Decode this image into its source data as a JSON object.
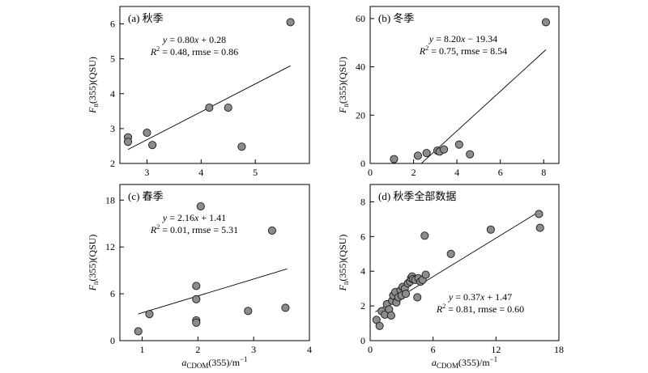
{
  "chart_data": [
    {
      "type": "scatter",
      "title": "(a) 秋季",
      "xlim": [
        2.5,
        6.0
      ],
      "ylim": [
        2,
        6.5
      ],
      "xticks": [
        3,
        4,
        5
      ],
      "yticks": [
        2,
        3,
        4,
        5,
        6
      ],
      "ylabel": {
        "main": "F",
        "sub": "n",
        "rest": "(355)(QSU)"
      },
      "xlabel": null,
      "points": [
        [
          2.65,
          2.75
        ],
        [
          2.65,
          2.62
        ],
        [
          3.0,
          2.88
        ],
        [
          3.1,
          2.53
        ],
        [
          4.15,
          3.6
        ],
        [
          4.5,
          3.6
        ],
        [
          4.75,
          2.48
        ],
        [
          5.65,
          6.05
        ]
      ],
      "fit": {
        "slope": 0.8,
        "intercept": 0.28,
        "x_range": [
          2.65,
          5.65
        ]
      },
      "equation": [
        "y = 0.80x + 0.28",
        "R2 = 0.48, rmse = 0.86"
      ],
      "equation_pos": "top-left"
    },
    {
      "type": "scatter",
      "title": "(b) 冬季",
      "xlim": [
        0,
        8.7
      ],
      "ylim": [
        0,
        65
      ],
      "xticks": [
        0,
        2,
        4,
        6,
        8
      ],
      "yticks": [
        0,
        20,
        40,
        60
      ],
      "ylabel": {
        "main": "F",
        "sub": "n",
        "rest": "(355)(QSU)"
      },
      "xlabel": null,
      "points": [
        [
          1.1,
          1.8
        ],
        [
          2.2,
          3.2
        ],
        [
          2.6,
          4.3
        ],
        [
          3.1,
          5.3
        ],
        [
          3.2,
          4.9
        ],
        [
          3.4,
          5.8
        ],
        [
          4.1,
          7.8
        ],
        [
          4.6,
          3.8
        ],
        [
          8.1,
          58.5
        ]
      ],
      "fit": {
        "slope": 8.2,
        "intercept": -19.34,
        "x_range": [
          2.36,
          8.1
        ]
      },
      "equation": [
        "y = 8.20x − 19.34",
        "R2 = 0.75, rmse = 8.54"
      ],
      "equation_pos": "top-right"
    },
    {
      "type": "scatter",
      "title": "(c) 春季",
      "xlim": [
        0.6,
        4.0
      ],
      "ylim": [
        0,
        20
      ],
      "xticks": [
        1,
        2,
        3,
        4
      ],
      "yticks": [
        0,
        6,
        12,
        18
      ],
      "ylabel": {
        "main": "F",
        "sub": "n",
        "rest": "(355)(QSU)"
      },
      "xlabel": {
        "main": "a",
        "sub": "CDOM",
        "rest": "(355)/m",
        "sup": "−1"
      },
      "points": [
        [
          0.93,
          1.2
        ],
        [
          1.13,
          3.4
        ],
        [
          1.97,
          7.0
        ],
        [
          1.97,
          5.3
        ],
        [
          1.97,
          2.6
        ],
        [
          1.97,
          2.3
        ],
        [
          2.05,
          17.2
        ],
        [
          2.9,
          3.8
        ],
        [
          3.33,
          14.1
        ],
        [
          3.57,
          4.2
        ]
      ],
      "fit": {
        "slope": 2.16,
        "intercept": 1.41,
        "x_range": [
          0.93,
          3.6
        ]
      },
      "equation": [
        "y = 2.16x + 1.41",
        "R2 = 0.01, rmse = 5.31"
      ],
      "equation_pos": "top-left"
    },
    {
      "type": "scatter",
      "title": "(d) 秋季全部数据",
      "xlim": [
        0,
        18
      ],
      "ylim": [
        0,
        9
      ],
      "xticks": [
        0,
        6,
        12,
        18
      ],
      "yticks": [
        0,
        2,
        4,
        6,
        8
      ],
      "ylabel": {
        "main": "F",
        "sub": "n",
        "rest": "(355)(QSU)"
      },
      "xlabel": {
        "main": "a",
        "sub": "CDOM",
        "rest": "(355)/m",
        "sup": "−1"
      },
      "points": [
        [
          0.6,
          1.2
        ],
        [
          0.9,
          0.85
        ],
        [
          1.1,
          1.7
        ],
        [
          1.4,
          1.5
        ],
        [
          1.6,
          2.1
        ],
        [
          1.8,
          1.8
        ],
        [
          2.0,
          1.45
        ],
        [
          2.1,
          2.3
        ],
        [
          2.2,
          2.6
        ],
        [
          2.4,
          2.8
        ],
        [
          2.5,
          2.2
        ],
        [
          2.7,
          2.5
        ],
        [
          2.9,
          2.9
        ],
        [
          3.0,
          2.6
        ],
        [
          3.1,
          3.1
        ],
        [
          3.3,
          3.0
        ],
        [
          3.4,
          2.7
        ],
        [
          3.6,
          3.3
        ],
        [
          3.8,
          3.4
        ],
        [
          3.9,
          3.6
        ],
        [
          4.0,
          3.7
        ],
        [
          4.1,
          3.55
        ],
        [
          4.3,
          3.5
        ],
        [
          4.5,
          2.5
        ],
        [
          4.6,
          3.6
        ],
        [
          4.8,
          3.4
        ],
        [
          5.0,
          3.5
        ],
        [
          5.3,
          3.8
        ],
        [
          5.2,
          6.05
        ],
        [
          7.7,
          5.0
        ],
        [
          11.5,
          6.4
        ],
        [
          16.1,
          7.3
        ],
        [
          16.2,
          6.5
        ]
      ],
      "fit": {
        "slope": 0.37,
        "intercept": 1.47,
        "x_range": [
          0.5,
          16.0
        ]
      },
      "equation": [
        "y = 0.37x + 1.47",
        "R2 = 0.81, rmse = 0.60"
      ],
      "equation_pos": "bottom-right"
    }
  ]
}
